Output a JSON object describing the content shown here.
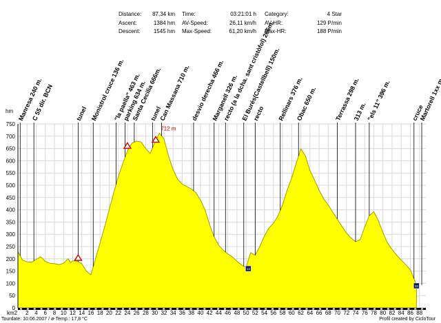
{
  "stats": [
    {
      "label": "Distance:",
      "value": "87,34 km"
    },
    {
      "label": "Ascent:",
      "value": "1384 hm"
    },
    {
      "label": "Descent:",
      "value": "1545 hm"
    },
    {
      "label": "Time:",
      "value": "03:21:01 h"
    },
    {
      "label": "AV-Speed:",
      "value": "26,11 km/h"
    },
    {
      "label": "Max-Speed:",
      "value": "61,20 km/h"
    },
    {
      "label": "Category:",
      "value": "4 Star"
    },
    {
      "label": "AV-HR:",
      "value": "129 P/min"
    },
    {
      "label": "Max-HR:",
      "value": "188 P/min"
    }
  ],
  "footer": {
    "left": "Tourdate: 10.06.2007  /  ø-Temp.: 17,8 °C",
    "right": "Profil created by CicloTour"
  },
  "chart_data": {
    "type": "area",
    "ylabel": "hm",
    "xlabel": "km2",
    "xlim": [
      0,
      89.4
    ],
    "ylim": [
      0,
      750
    ],
    "yticks": [
      0,
      50,
      100,
      150,
      200,
      250,
      300,
      350,
      400,
      450,
      500,
      550,
      600,
      650,
      700,
      750
    ],
    "xticks": [
      2,
      4,
      6,
      8,
      10,
      12,
      14,
      16,
      18,
      20,
      22,
      24,
      26,
      28,
      30,
      32,
      34,
      36,
      38,
      40,
      42,
      44,
      46,
      48,
      50,
      52,
      54,
      56,
      58,
      60,
      62,
      64,
      66,
      68,
      70,
      72,
      74,
      76,
      78,
      80,
      82,
      84,
      86,
      88
    ],
    "grid": true,
    "fill_color": "#ffff00",
    "line_color": "#a0a000",
    "profile": [
      [
        0,
        230
      ],
      [
        1,
        195
      ],
      [
        2,
        188
      ],
      [
        3,
        186
      ],
      [
        4,
        198
      ],
      [
        5,
        208
      ],
      [
        6,
        190
      ],
      [
        7,
        182
      ],
      [
        8,
        180
      ],
      [
        9,
        176
      ],
      [
        10,
        182
      ],
      [
        11,
        200
      ],
      [
        11.5,
        185
      ],
      [
        12,
        192
      ],
      [
        13,
        190
      ],
      [
        14,
        180
      ],
      [
        15,
        150
      ],
      [
        16,
        135
      ],
      [
        17,
        200
      ],
      [
        18,
        265
      ],
      [
        19,
        330
      ],
      [
        20,
        400
      ],
      [
        21,
        470
      ],
      [
        22,
        535
      ],
      [
        23,
        590
      ],
      [
        24,
        640
      ],
      [
        25,
        672
      ],
      [
        26,
        680
      ],
      [
        27,
        676
      ],
      [
        28,
        650
      ],
      [
        29,
        630
      ],
      [
        30,
        675
      ],
      [
        31,
        712
      ],
      [
        32,
        690
      ],
      [
        33,
        620
      ],
      [
        34,
        565
      ],
      [
        35,
        525
      ],
      [
        36,
        505
      ],
      [
        37,
        495
      ],
      [
        38,
        485
      ],
      [
        39,
        470
      ],
      [
        40,
        440
      ],
      [
        41,
        400
      ],
      [
        42,
        340
      ],
      [
        43,
        290
      ],
      [
        44,
        255
      ],
      [
        45,
        235
      ],
      [
        46,
        220
      ],
      [
        47,
        208
      ],
      [
        48,
        190
      ],
      [
        49,
        175
      ],
      [
        50,
        165
      ],
      [
        51,
        225
      ],
      [
        52,
        215
      ],
      [
        53,
        250
      ],
      [
        54,
        292
      ],
      [
        55,
        325
      ],
      [
        56,
        345
      ],
      [
        57,
        375
      ],
      [
        58,
        420
      ],
      [
        59,
        480
      ],
      [
        60,
        530
      ],
      [
        61,
        590
      ],
      [
        62,
        648
      ],
      [
        63,
        620
      ],
      [
        64,
        560
      ],
      [
        65,
        522
      ],
      [
        66,
        480
      ],
      [
        67,
        445
      ],
      [
        68,
        420
      ],
      [
        69,
        390
      ],
      [
        70,
        362
      ],
      [
        71,
        332
      ],
      [
        72,
        305
      ],
      [
        73,
        285
      ],
      [
        74,
        270
      ],
      [
        75,
        278
      ],
      [
        76,
        330
      ],
      [
        77,
        376
      ],
      [
        78,
        392
      ],
      [
        79,
        356
      ],
      [
        80,
        306
      ],
      [
        81,
        265
      ],
      [
        82,
        238
      ],
      [
        83,
        215
      ],
      [
        84,
        195
      ],
      [
        85,
        176
      ],
      [
        86,
        155
      ],
      [
        87,
        110
      ],
      [
        87.34,
        93
      ]
    ],
    "peak_label": {
      "x": 31,
      "y": 712,
      "text": "712 m"
    },
    "warnings": [
      {
        "x": 13.2,
        "y": 188
      },
      {
        "x": 24,
        "y": 645
      },
      {
        "x": 30.2,
        "y": 670
      }
    ],
    "boxes": [
      {
        "x": 50.5,
        "y": 160,
        "text": "14"
      },
      {
        "x": 87.34,
        "y": 90,
        "text": "33"
      }
    ],
    "waypoints": [
      {
        "x": 0.5,
        "text": "Manresa 240 m."
      },
      {
        "x": 3.5,
        "text": "C 55 dir. BCN"
      },
      {
        "x": 13.2,
        "text": "tunel"
      },
      {
        "x": 16.5,
        "text": "Monistrol cruce 136 m."
      },
      {
        "x": 21.5,
        "text": "\"la paella\" 463 m."
      },
      {
        "x": 23.5,
        "text": "parking 634 m."
      },
      {
        "x": 25.5,
        "text": "Santa Cecilia 666m."
      },
      {
        "x": 29.5,
        "text": "tunel"
      },
      {
        "x": 31.5,
        "text": "Can Massana 710 m."
      },
      {
        "x": 38.5,
        "text": "desvio derecha 466 m."
      },
      {
        "x": 43,
        "text": "Marganell 326 m."
      },
      {
        "x": 45.5,
        "text": "recto (a la dcha. sant cristòfol) 266m."
      },
      {
        "x": 49.5,
        "text": "El Burés(Castellbell) 150m."
      },
      {
        "x": 52,
        "text": "recto"
      },
      {
        "x": 57.5,
        "text": "Rellinars 376 m."
      },
      {
        "x": 61.5,
        "text": "Obac 650 m."
      },
      {
        "x": 70,
        "text": "Terrassa 298 m."
      },
      {
        "x": 74,
        "text": "313 m."
      },
      {
        "x": 77,
        "text": "\"els 11\" 396 m."
      },
      {
        "x": 86.8,
        "text": "cruce"
      },
      {
        "x": 88.5,
        "text": "Martorell 1xx m."
      }
    ]
  }
}
